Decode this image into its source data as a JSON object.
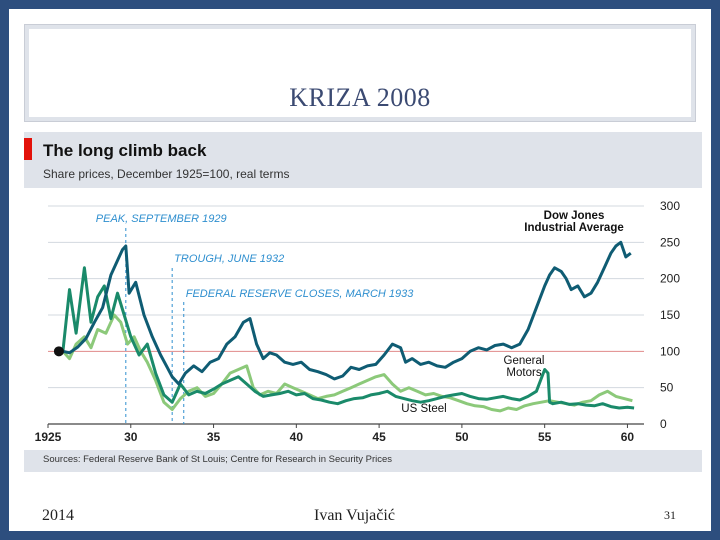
{
  "slide": {
    "title": "KRIZA 2008",
    "footer_year": "2014",
    "footer_author": "Ivan Vujačić",
    "page_number": "31"
  },
  "colors": {
    "frame": "#2d4e7e",
    "dow_jones": "#0f5c73",
    "general_motors": "#1a8a6a",
    "us_steel": "#8cc97a",
    "annotation": "#2f8fcf",
    "baseline_100": "#e08a8a",
    "header_bg": "#dfe3ea"
  },
  "chart_data": {
    "type": "line",
    "title": "The long climb back",
    "subtitle": "Share prices, December 1925=100, real terms",
    "source": "Sources: Federal Reserve Bank of St Louis; Centre for Research in Security Prices",
    "xlabel": "",
    "ylabel": "",
    "xlim": [
      1925,
      1961
    ],
    "ylim": [
      0,
      300
    ],
    "x_ticks": [
      {
        "value": 1925,
        "label": "1925"
      },
      {
        "value": 1930,
        "label": "30"
      },
      {
        "value": 1935,
        "label": "35"
      },
      {
        "value": 1940,
        "label": "40"
      },
      {
        "value": 1945,
        "label": "45"
      },
      {
        "value": 1950,
        "label": "50"
      },
      {
        "value": 1955,
        "label": "55"
      },
      {
        "value": 1960,
        "label": "60"
      }
    ],
    "y_ticks": [
      0,
      50,
      100,
      150,
      200,
      250,
      300
    ],
    "y_axis_side": "right",
    "grid": "horizontal",
    "reference_line": 100,
    "events": [
      {
        "year": 1929.7,
        "label": "PEAK, SEPTEMBER 1929"
      },
      {
        "year": 1932.5,
        "label": "TROUGH, JUNE 1932"
      },
      {
        "year": 1933.2,
        "label": "FEDERAL RESERVE CLOSES, MARCH 1933"
      }
    ],
    "series": [
      {
        "name": "Dow Jones Industrial Average",
        "label_lines": [
          "Dow Jones",
          "Industrial Average"
        ],
        "color": "#0f5c73",
        "x": [
          1925.9,
          1926.3,
          1926.8,
          1927.3,
          1927.8,
          1928.3,
          1928.8,
          1929.2,
          1929.5,
          1929.7,
          1929.9,
          1930.3,
          1930.8,
          1931.3,
          1931.8,
          1932.2,
          1932.5,
          1932.9,
          1933.3,
          1933.8,
          1934.3,
          1934.8,
          1935.3,
          1935.8,
          1936.3,
          1936.8,
          1937.2,
          1937.6,
          1938.0,
          1938.4,
          1938.8,
          1939.3,
          1939.8,
          1940.3,
          1940.8,
          1941.3,
          1941.8,
          1942.3,
          1942.8,
          1943.3,
          1943.8,
          1944.3,
          1944.8,
          1945.3,
          1945.8,
          1946.3,
          1946.6,
          1947.0,
          1947.5,
          1948.0,
          1948.5,
          1949.0,
          1949.5,
          1950.0,
          1950.5,
          1951.0,
          1951.5,
          1952.0,
          1952.5,
          1953.0,
          1953.5,
          1954.0,
          1954.5,
          1955.0,
          1955.3,
          1955.6,
          1956.0,
          1956.3,
          1956.6,
          1957.0,
          1957.4,
          1957.8,
          1958.2,
          1958.6,
          1959.0,
          1959.3,
          1959.6,
          1959.9,
          1960.2
        ],
        "values": [
          100,
          98,
          106,
          118,
          140,
          160,
          205,
          225,
          240,
          245,
          180,
          195,
          150,
          120,
          95,
          78,
          65,
          55,
          70,
          80,
          72,
          85,
          90,
          110,
          120,
          140,
          145,
          110,
          90,
          98,
          95,
          85,
          82,
          85,
          75,
          72,
          68,
          62,
          66,
          78,
          75,
          80,
          82,
          95,
          110,
          105,
          85,
          90,
          82,
          85,
          80,
          78,
          85,
          90,
          100,
          105,
          102,
          108,
          110,
          105,
          110,
          130,
          160,
          190,
          205,
          215,
          210,
          200,
          185,
          190,
          175,
          180,
          195,
          215,
          235,
          245,
          250,
          230,
          235
        ]
      },
      {
        "name": "General Motors",
        "label_lines": [
          "General",
          "Motors"
        ],
        "color": "#1a8a6a",
        "x": [
          1925.9,
          1926.3,
          1926.7,
          1927.2,
          1927.6,
          1928.0,
          1928.4,
          1928.8,
          1929.2,
          1929.6,
          1930.0,
          1930.5,
          1931.0,
          1931.5,
          1932.0,
          1932.5,
          1933.0,
          1933.5,
          1934.0,
          1934.5,
          1935.0,
          1935.5,
          1936.0,
          1936.5,
          1937.0,
          1937.5,
          1938.0,
          1938.5,
          1939.0,
          1939.5,
          1940.0,
          1940.5,
          1941.0,
          1941.5,
          1942.0,
          1942.5,
          1943.0,
          1943.5,
          1944.0,
          1944.5,
          1945.0,
          1945.5,
          1946.0,
          1946.5,
          1947.0,
          1947.5,
          1948.0,
          1948.5,
          1949.0,
          1949.5,
          1950.0,
          1950.5,
          1951.0,
          1951.5,
          1952.0,
          1952.5,
          1953.0,
          1953.5,
          1954.0,
          1954.5,
          1955.0,
          1955.2,
          1955.3,
          1955.5,
          1956.0,
          1956.5,
          1957.0,
          1957.5,
          1958.0,
          1958.5,
          1959.0,
          1959.5,
          1960.0,
          1960.4
        ],
        "values": [
          100,
          185,
          125,
          215,
          140,
          175,
          190,
          145,
          180,
          150,
          120,
          95,
          110,
          70,
          40,
          30,
          55,
          40,
          45,
          42,
          48,
          55,
          60,
          65,
          55,
          45,
          38,
          40,
          42,
          45,
          40,
          42,
          35,
          33,
          30,
          28,
          32,
          35,
          36,
          40,
          42,
          45,
          38,
          35,
          32,
          30,
          32,
          35,
          38,
          40,
          42,
          38,
          35,
          34,
          36,
          38,
          35,
          33,
          38,
          45,
          75,
          70,
          30,
          28,
          30,
          27,
          28,
          26,
          25,
          28,
          24,
          22,
          23,
          22
        ]
      },
      {
        "name": "US Steel",
        "label_lines": [
          "US Steel"
        ],
        "color": "#8cc97a",
        "x": [
          1925.9,
          1926.3,
          1926.7,
          1927.2,
          1927.6,
          1928.0,
          1928.5,
          1929.0,
          1929.4,
          1929.8,
          1930.2,
          1930.6,
          1931.0,
          1931.5,
          1932.0,
          1932.5,
          1933.0,
          1933.5,
          1934.0,
          1934.5,
          1935.0,
          1935.5,
          1936.0,
          1936.5,
          1937.0,
          1937.4,
          1937.8,
          1938.3,
          1938.8,
          1939.3,
          1939.8,
          1940.3,
          1940.8,
          1941.3,
          1941.8,
          1942.3,
          1942.8,
          1943.3,
          1943.8,
          1944.3,
          1944.8,
          1945.3,
          1945.8,
          1946.3,
          1946.8,
          1947.3,
          1947.8,
          1948.3,
          1948.8,
          1949.3,
          1949.8,
          1950.3,
          1950.8,
          1951.3,
          1951.8,
          1952.3,
          1952.8,
          1953.3,
          1953.8,
          1954.3,
          1954.8,
          1955.3,
          1955.8,
          1956.3,
          1956.8,
          1957.3,
          1957.8,
          1958.3,
          1958.8,
          1959.3,
          1959.8,
          1960.3
        ],
        "values": [
          100,
          90,
          110,
          120,
          105,
          130,
          125,
          150,
          140,
          110,
          120,
          100,
          85,
          60,
          30,
          20,
          35,
          45,
          50,
          38,
          42,
          55,
          70,
          75,
          80,
          50,
          40,
          45,
          42,
          55,
          50,
          45,
          40,
          35,
          38,
          40,
          45,
          50,
          55,
          60,
          65,
          68,
          55,
          45,
          50,
          45,
          40,
          42,
          38,
          36,
          32,
          28,
          25,
          24,
          20,
          18,
          22,
          20,
          25,
          28,
          30,
          32,
          30,
          28,
          26,
          30,
          32,
          40,
          45,
          38,
          35,
          32
        ]
      }
    ]
  }
}
